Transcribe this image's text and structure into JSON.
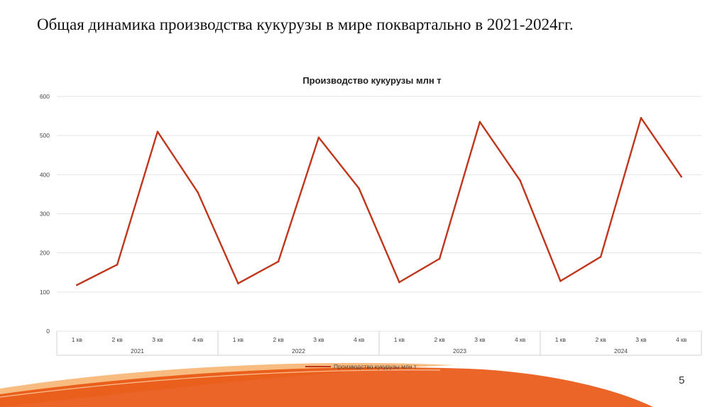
{
  "slide": {
    "title": "Общая динамика производства кукурузы в мире поквартально в 2021-2024гг.",
    "page_number": "5"
  },
  "colors": {
    "line": "#c0361b",
    "swoosh_dark": "#e8540f",
    "swoosh_light": "#f7a04a",
    "grid": "#e3e3e3"
  },
  "chart_data": {
    "type": "line",
    "title": "Производство кукурузы млн т",
    "quarters": [
      "1 кв",
      "2 кв",
      "3 кв",
      "4 кв"
    ],
    "years": [
      "2021",
      "2022",
      "2023",
      "2024"
    ],
    "categories": [
      "1 кв",
      "2 кв",
      "3 кв",
      "4 кв",
      "1 кв",
      "2 кв",
      "3 кв",
      "4 кв",
      "1 кв",
      "2 кв",
      "3 кв",
      "4 кв",
      "1 кв",
      "2 кв",
      "3 кв",
      "4 кв"
    ],
    "series": [
      {
        "name": "Производство кукурузы млн т",
        "values": [
          118,
          170,
          510,
          355,
          122,
          178,
          495,
          365,
          125,
          185,
          535,
          385,
          128,
          190,
          545,
          395
        ]
      }
    ],
    "yticks": [
      0,
      100,
      200,
      300,
      400,
      500,
      600
    ],
    "ylim": [
      0,
      600
    ],
    "grid": true,
    "legend_position": "bottom"
  }
}
